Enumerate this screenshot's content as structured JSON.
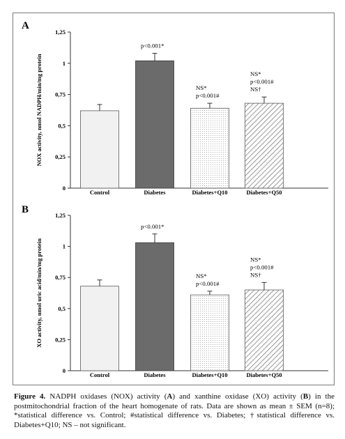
{
  "chart_data": [
    {
      "type": "bar",
      "panel_label": "A",
      "ylabel": "NOX activity, nmol NADPH/min/mg protein",
      "categories": [
        "Control",
        "Diabetes",
        "Diabetes+Q10",
        "Diabetes+Q50"
      ],
      "values": [
        0.62,
        1.02,
        0.64,
        0.68
      ],
      "errors": [
        0.05,
        0.06,
        0.04,
        0.05
      ],
      "ylim": [
        0,
        1.25
      ],
      "yticks": [
        "0",
        "0,25",
        "0,5",
        "0,75",
        "1",
        "1,25"
      ],
      "bar_styles": [
        "light",
        "dark",
        "dotted",
        "hatched"
      ],
      "annotations": [
        [],
        [
          "p<0.001*"
        ],
        [
          "NS*",
          "p<0.001#"
        ],
        [
          "NS*",
          "p<0.001#",
          "NS†"
        ]
      ]
    },
    {
      "type": "bar",
      "panel_label": "B",
      "ylabel": "XO activity, nmol uric acid/min/mg protein",
      "categories": [
        "Control",
        "Diabetes",
        "Diabetes+Q10",
        "Diabetes+Q50"
      ],
      "values": [
        0.68,
        1.03,
        0.61,
        0.65
      ],
      "errors": [
        0.05,
        0.07,
        0.03,
        0.06
      ],
      "ylim": [
        0,
        1.25
      ],
      "yticks": [
        "0",
        "0,25",
        "0,5",
        "0,75",
        "1",
        "1,25"
      ],
      "bar_styles": [
        "light",
        "dark",
        "dotted",
        "hatched"
      ],
      "annotations": [
        [],
        [
          "p<0.001*"
        ],
        [
          "NS*",
          "p<0.001#"
        ],
        [
          "NS*",
          "p<0.001#",
          "NS†"
        ]
      ]
    }
  ],
  "caption": {
    "label": "Figure 4.",
    "p1": " NADPH oxidases (NOX) activity (",
    "a": "A",
    "p2": ") and xanthine oxidase (XO) activity (",
    "b": "B",
    "p3": ") in the postmitochondrial fraction of the heart homogenate of rats. Data are shown as mean ± SEM (n=8); *statistical difference vs. Control; #statistical difference vs. Diabetes; †statistical difference vs. Diabetes+Q10; NS – not significant."
  }
}
